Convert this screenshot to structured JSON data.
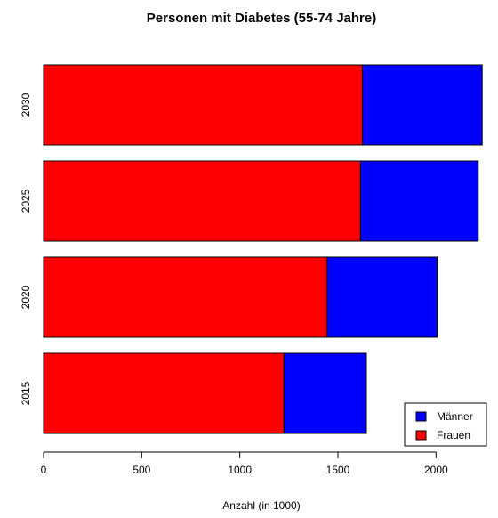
{
  "chart_data": {
    "type": "bar",
    "orientation": "horizontal",
    "stacked": true,
    "title": "Personen mit Diabetes (55-74 Jahre)",
    "xlabel": "Anzahl (in 1000)",
    "ylabel": "",
    "xlim": [
      0,
      2250
    ],
    "xticks": [
      0,
      500,
      1000,
      1500,
      2000
    ],
    "categories": [
      "2015",
      "2020",
      "2025",
      "2030"
    ],
    "series": [
      {
        "name": "Frauen",
        "color": "#ff0000",
        "values": [
          1225,
          1445,
          1615,
          1625
        ]
      },
      {
        "name": "Männer",
        "color": "#0000ff",
        "values": [
          420,
          560,
          600,
          610
        ]
      }
    ],
    "legend": {
      "position": "bottom-right",
      "entries": [
        {
          "label": "Männer",
          "color": "#0000ff"
        },
        {
          "label": "Frauen",
          "color": "#ff0000"
        }
      ]
    },
    "grid": false
  }
}
